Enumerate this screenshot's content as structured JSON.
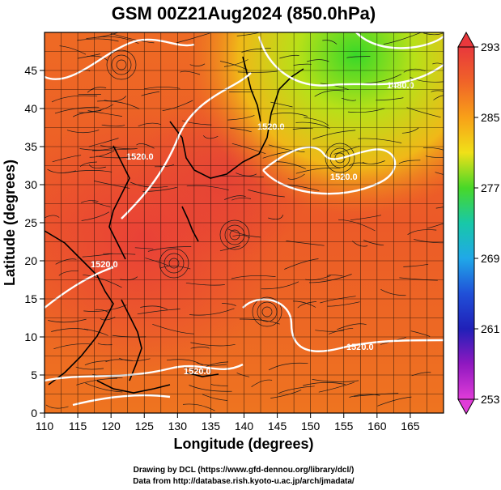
{
  "title": "GSM 00Z21Aug2024 (850.0hPa)",
  "xlabel": "Longitude (degrees)",
  "ylabel": "Latitude  (degrees)",
  "x_ticks": [
    "110",
    "115",
    "120",
    "125",
    "130",
    "135",
    "140",
    "145",
    "150",
    "155",
    "160",
    "165"
  ],
  "y_ticks": [
    "0",
    "5",
    "10",
    "15",
    "20",
    "25",
    "30",
    "35",
    "40",
    "45"
  ],
  "colorbar": {
    "labels": [
      "293",
      "285",
      "277",
      "269",
      "261",
      "253"
    ],
    "colors": [
      "#e8383c",
      "#f07a20",
      "#f8c818",
      "#48d828",
      "#18c8c8",
      "#2878e8",
      "#2020b8",
      "#b01ab0",
      "#e03cd8"
    ]
  },
  "contour_labels": [
    "1480.0",
    "1520.0",
    "1520.0",
    "1520.0",
    "1520.0",
    "1520.0",
    "1520.0"
  ],
  "credits": {
    "line1": "Drawing by DCL (https://www.gfd-dennou.org/library/dcl/)",
    "line2": "Data from http://database.rish.kyoto-u.ac.jp/arch/jmadata/"
  },
  "chart_data": {
    "type": "heatmap",
    "title": "GSM 00Z21Aug2024 (850.0hPa)",
    "xlabel": "Longitude (degrees)",
    "ylabel": "Latitude  (degrees)",
    "xlim": [
      110,
      170
    ],
    "ylim": [
      0,
      50
    ],
    "x_ticks": [
      110,
      115,
      120,
      125,
      130,
      135,
      140,
      145,
      150,
      155,
      160,
      165
    ],
    "y_ticks": [
      0,
      5,
      10,
      15,
      20,
      25,
      30,
      35,
      40,
      45
    ],
    "colorbar_range": [
      253,
      293
    ],
    "colorbar_ticks": [
      293,
      285,
      277,
      269,
      261,
      253
    ],
    "grid": true,
    "contour_levels": [
      1480.0,
      1520.0
    ]
  }
}
